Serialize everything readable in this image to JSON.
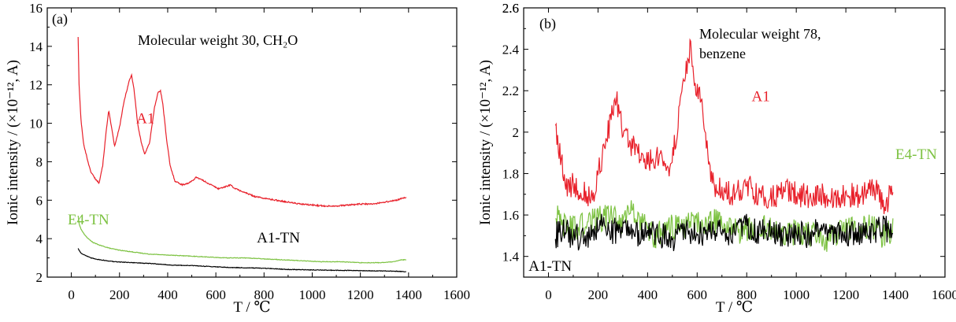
{
  "chart_data": [
    {
      "type": "line",
      "panel_label": "(a)",
      "annotation": "Molecular weight 30, CH₂O",
      "xlabel": "T / ℃",
      "ylabel": "Ionic intensity / (×10⁻¹², A)",
      "xlim": [
        -100,
        1600
      ],
      "ylim": [
        2,
        16
      ],
      "xticks": [
        0,
        200,
        400,
        600,
        800,
        1000,
        1200,
        1400,
        1600
      ],
      "yticks": [
        2,
        4,
        6,
        8,
        10,
        12,
        14,
        16
      ],
      "grid": false,
      "series": [
        {
          "name": "A1",
          "color": "#e8202a",
          "label_pos": [
            270,
            10.0
          ],
          "x": [
            28,
            32,
            40,
            50,
            65,
            80,
            100,
            115,
            130,
            145,
            155,
            165,
            180,
            200,
            220,
            240,
            250,
            260,
            275,
            290,
            305,
            325,
            345,
            360,
            370,
            380,
            395,
            410,
            430,
            460,
            490,
            520,
            550,
            580,
            610,
            640,
            660,
            680,
            720,
            760,
            800,
            850,
            900,
            950,
            1000,
            1050,
            1100,
            1150,
            1200,
            1250,
            1300,
            1350,
            1390
          ],
          "y": [
            14.5,
            12.0,
            10.2,
            9.0,
            8.2,
            7.5,
            7.1,
            6.9,
            7.8,
            9.6,
            10.7,
            9.9,
            8.8,
            9.8,
            11.2,
            12.2,
            12.5,
            11.8,
            10.0,
            9.0,
            8.4,
            9.0,
            10.8,
            11.6,
            11.7,
            11.0,
            9.2,
            7.8,
            7.0,
            6.8,
            6.9,
            7.2,
            7.0,
            6.8,
            6.6,
            6.7,
            6.8,
            6.6,
            6.4,
            6.2,
            6.1,
            6.0,
            5.9,
            5.8,
            5.75,
            5.7,
            5.7,
            5.75,
            5.8,
            5.8,
            5.9,
            6.0,
            6.15
          ]
        },
        {
          "name": "E4-TN",
          "color": "#7dc242",
          "label_pos": [
            -15,
            4.75
          ],
          "x": [
            28,
            32,
            40,
            55,
            70,
            90,
            120,
            160,
            200,
            260,
            320,
            400,
            480,
            560,
            640,
            720,
            800,
            880,
            960,
            1040,
            1120,
            1200,
            1280,
            1340,
            1370,
            1390
          ],
          "y": [
            5.2,
            4.8,
            4.5,
            4.2,
            4.0,
            3.8,
            3.65,
            3.5,
            3.4,
            3.3,
            3.2,
            3.15,
            3.1,
            3.05,
            3.0,
            3.0,
            2.95,
            2.9,
            2.85,
            2.8,
            2.8,
            2.75,
            2.75,
            2.8,
            2.9,
            2.9
          ]
        },
        {
          "name": "A1-TN",
          "color": "#000000",
          "label_pos": [
            770,
            3.8
          ],
          "x": [
            28,
            32,
            40,
            55,
            80,
            120,
            180,
            260,
            340,
            420,
            500,
            580,
            660,
            740,
            820,
            900,
            980,
            1060,
            1140,
            1220,
            1300,
            1360,
            1390
          ],
          "y": [
            3.5,
            3.4,
            3.25,
            3.15,
            3.0,
            2.9,
            2.8,
            2.75,
            2.7,
            2.62,
            2.6,
            2.55,
            2.5,
            2.48,
            2.45,
            2.4,
            2.38,
            2.36,
            2.35,
            2.33,
            2.32,
            2.3,
            2.28
          ]
        }
      ]
    },
    {
      "type": "line",
      "panel_label": "(b)",
      "annotation": [
        "Molecular weight 78,",
        "benzene"
      ],
      "xlabel": "T / ℃",
      "ylabel": "Ionic intensity / (×10⁻¹², A)",
      "xlim": [
        -100,
        1600
      ],
      "ylim": [
        1.3,
        2.6
      ],
      "xticks": [
        0,
        200,
        400,
        600,
        800,
        1000,
        1200,
        1400,
        1600
      ],
      "yticks": [
        1.4,
        1.6,
        1.8,
        2.0,
        2.2,
        2.4,
        2.6
      ],
      "grid": false,
      "series": [
        {
          "name": "A1",
          "color": "#e8202a",
          "label_pos": [
            820,
            2.15
          ],
          "x": [
            28,
            35,
            45,
            60,
            80,
            100,
            120,
            150,
            180,
            210,
            240,
            260,
            275,
            290,
            310,
            340,
            370,
            400,
            430,
            460,
            490,
            510,
            530,
            550,
            565,
            575,
            585,
            600,
            615,
            630,
            645,
            660,
            700,
            750,
            800,
            850,
            900,
            950,
            1000,
            1050,
            1100,
            1150,
            1200,
            1250,
            1300,
            1330,
            1360,
            1390
          ],
          "y": [
            2.05,
            1.95,
            1.9,
            1.8,
            1.72,
            1.75,
            1.73,
            1.7,
            1.68,
            1.85,
            2.0,
            2.1,
            2.15,
            2.05,
            1.98,
            1.93,
            1.9,
            1.85,
            1.88,
            1.86,
            1.83,
            1.95,
            2.1,
            2.25,
            2.35,
            2.42,
            2.3,
            2.2,
            2.15,
            2.0,
            1.85,
            1.75,
            1.72,
            1.7,
            1.74,
            1.7,
            1.68,
            1.72,
            1.7,
            1.69,
            1.7,
            1.68,
            1.7,
            1.69,
            1.73,
            1.71,
            1.65,
            1.72
          ]
        },
        {
          "name": "E4-TN",
          "color": "#7dc242",
          "label_pos": [
            1400,
            1.87
          ],
          "x": [
            28,
            60,
            100,
            150,
            200,
            250,
            300,
            340,
            380,
            430,
            480,
            530,
            580,
            640,
            700,
            760,
            820,
            880,
            940,
            1000,
            1060,
            1120,
            1180,
            1240,
            1300,
            1350,
            1390
          ],
          "y": [
            1.6,
            1.55,
            1.53,
            1.55,
            1.58,
            1.6,
            1.57,
            1.62,
            1.55,
            1.5,
            1.53,
            1.55,
            1.55,
            1.58,
            1.55,
            1.52,
            1.53,
            1.55,
            1.5,
            1.52,
            1.5,
            1.48,
            1.52,
            1.53,
            1.55,
            1.5,
            1.52
          ]
        },
        {
          "name": "A1-TN",
          "color": "#000000",
          "label_pos": [
            -80,
            1.33
          ],
          "x": [
            28,
            60,
            100,
            150,
            200,
            250,
            300,
            350,
            400,
            450,
            500,
            550,
            600,
            650,
            700,
            750,
            800,
            850,
            900,
            950,
            1000,
            1050,
            1100,
            1150,
            1200,
            1250,
            1300,
            1350,
            1390
          ],
          "y": [
            1.5,
            1.52,
            1.5,
            1.48,
            1.55,
            1.52,
            1.53,
            1.5,
            1.52,
            1.5,
            1.48,
            1.52,
            1.5,
            1.53,
            1.52,
            1.5,
            1.55,
            1.52,
            1.53,
            1.5,
            1.52,
            1.5,
            1.53,
            1.52,
            1.5,
            1.52,
            1.5,
            1.55,
            1.5
          ]
        }
      ]
    }
  ]
}
